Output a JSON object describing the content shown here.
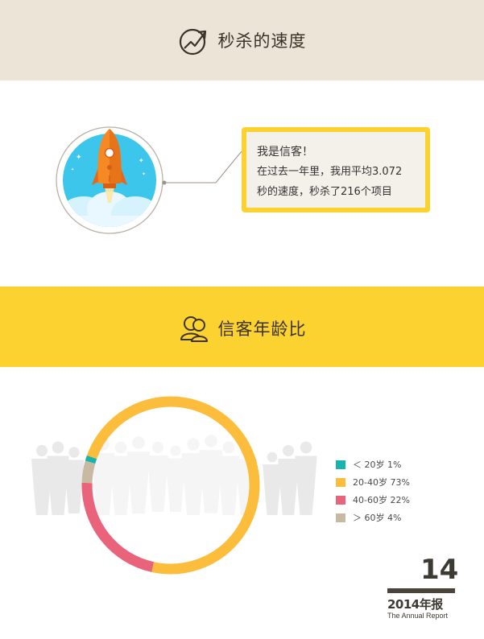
{
  "section1": {
    "title": "秒杀的速度",
    "icon": "trending-up-circle-icon"
  },
  "rocket": {
    "icon": "rocket-icon"
  },
  "bubble": {
    "line1": "我是信客！",
    "line2": "在过去一年里，我用平均3.072",
    "line3": "秒的速度，秒杀了216个项目"
  },
  "section2": {
    "title": "信客年龄比",
    "icon": "users-icon"
  },
  "chart_data": {
    "type": "pie",
    "style": "donut",
    "categories": [
      "＜ 20岁",
      "20-40岁",
      "40-60岁",
      "＞ 60岁"
    ],
    "values": [
      1,
      73,
      22,
      4
    ],
    "labels": [
      "1%",
      "73%",
      "22%",
      "4%"
    ],
    "colors": [
      "#17b3ad",
      "#fcbd3c",
      "#e9647a",
      "#c7b9a2"
    ],
    "legend_position": "right"
  },
  "legend": [
    {
      "label": "＜ 20岁  1%",
      "color": "#17b3ad"
    },
    {
      "label": "20-40岁  73%",
      "color": "#fcbd3c"
    },
    {
      "label": "40-60岁  22%",
      "color": "#e9647a"
    },
    {
      "label": "＞ 60岁  4%",
      "color": "#c7b9a2"
    }
  ],
  "footer": {
    "page_number": "14",
    "year_title": "2014年报",
    "subtitle": "The Annual Report"
  }
}
